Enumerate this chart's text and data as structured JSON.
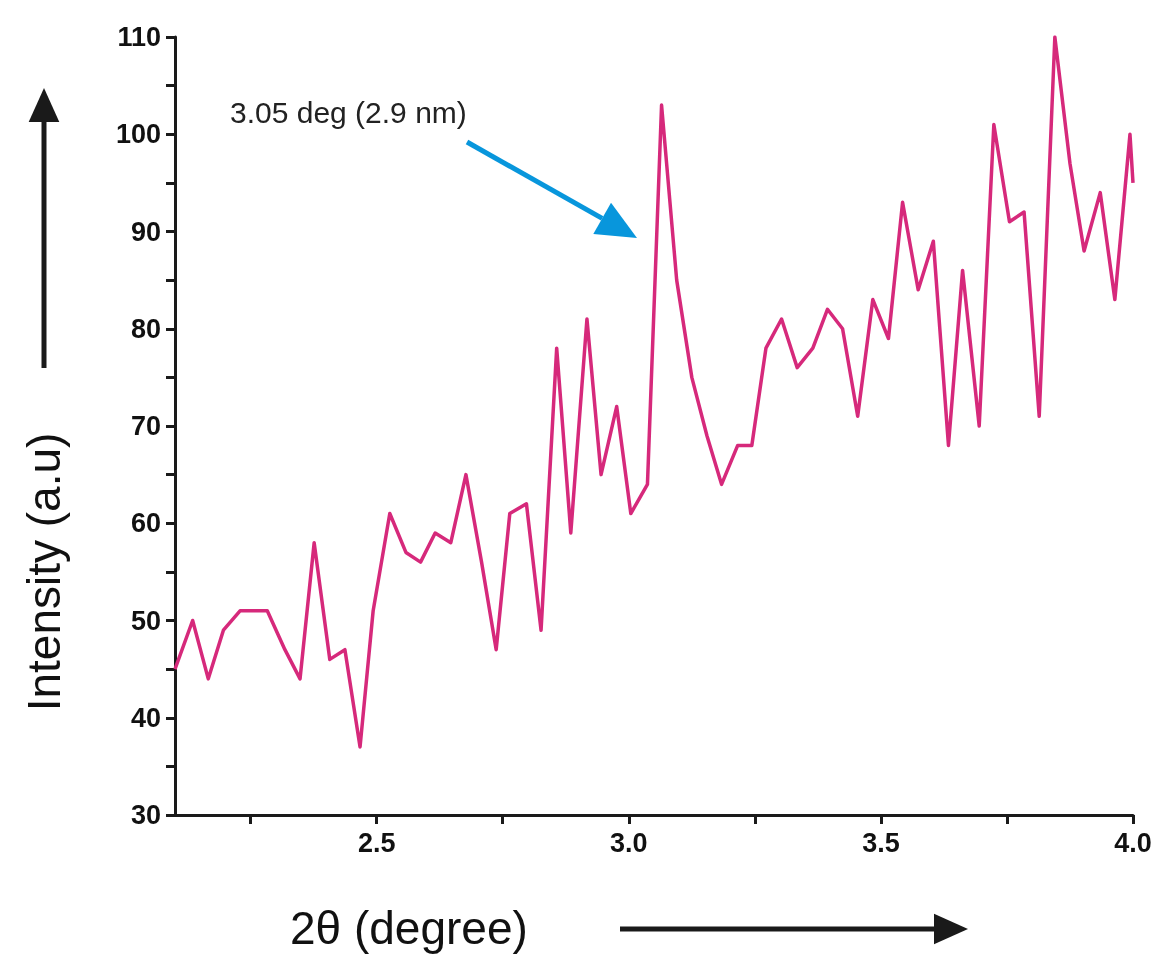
{
  "chart_data": {
    "type": "line",
    "xlabel": "2θ (degree)",
    "ylabel": "Intensity (a.u)",
    "x": [
      2.1,
      2.135,
      2.166,
      2.196,
      2.229,
      2.256,
      2.283,
      2.318,
      2.348,
      2.376,
      2.407,
      2.437,
      2.467,
      2.493,
      2.526,
      2.558,
      2.587,
      2.616,
      2.647,
      2.677,
      2.708,
      2.737,
      2.764,
      2.797,
      2.826,
      2.857,
      2.885,
      2.917,
      2.945,
      2.976,
      3.004,
      3.037,
      3.065,
      3.095,
      3.125,
      3.155,
      3.184,
      3.216,
      3.244,
      3.272,
      3.303,
      3.334,
      3.365,
      3.394,
      3.424,
      3.454,
      3.484,
      3.515,
      3.543,
      3.574,
      3.604,
      3.634,
      3.662,
      3.695,
      3.724,
      3.755,
      3.784,
      3.814,
      3.845,
      3.875,
      3.903,
      3.935,
      3.964,
      3.994,
      4.0
    ],
    "series": [
      {
        "color": "#d6297b",
        "values": [
          45,
          50,
          44,
          49,
          51,
          51,
          51,
          47,
          44,
          58,
          46,
          47,
          37,
          51,
          61,
          57,
          56,
          59,
          58,
          65,
          56,
          47,
          61,
          62,
          49,
          78,
          59,
          81,
          65,
          72,
          61,
          64,
          103,
          85,
          75,
          69,
          64,
          68,
          68,
          78,
          81,
          76,
          78,
          82,
          80,
          71,
          83,
          79,
          93,
          84,
          89,
          68,
          86,
          70,
          101,
          91,
          92,
          71,
          110,
          97,
          88,
          94,
          83,
          100,
          95
        ]
      }
    ],
    "xlim": [
      2.1,
      4.0
    ],
    "xticks": [
      {
        "value": 2.25,
        "label": null
      },
      {
        "value": 2.5,
        "label": "2.5"
      },
      {
        "value": 2.75,
        "label": null
      },
      {
        "value": 3.0,
        "label": "3.0"
      },
      {
        "value": 3.25,
        "label": null
      },
      {
        "value": 3.5,
        "label": "3.5"
      },
      {
        "value": 3.75,
        "label": null
      },
      {
        "value": 4.0,
        "label": "4.0"
      }
    ],
    "ylim": [
      30,
      110
    ],
    "yticks": [
      30,
      {
        "value": 35,
        "label": null
      },
      40,
      {
        "value": 45,
        "label": null
      },
      50,
      {
        "value": 55,
        "label": null
      },
      60,
      {
        "value": 65,
        "label": null
      },
      70,
      {
        "value": 75,
        "label": null
      },
      80,
      {
        "value": 85,
        "label": null
      },
      90,
      {
        "value": 95,
        "label": null
      },
      100,
      {
        "value": 105,
        "label": null
      },
      110
    ],
    "grid": false,
    "marker": "none",
    "line_style": "solid",
    "annotations": [
      "3.05 deg (2.9 nm)"
    ]
  }
}
